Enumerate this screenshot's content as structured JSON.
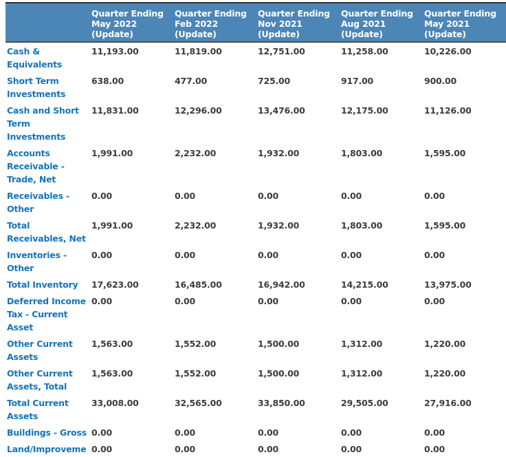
{
  "chart_data": {
    "type": "table",
    "corner_label": "",
    "columns": [
      "Quarter Ending\nMay 2022\n(Update)",
      "Quarter Ending\nFeb 2022\n(Update)",
      "Quarter Ending\nNov 2021\n(Update)",
      "Quarter Ending\nAug 2021\n(Update)",
      "Quarter Ending\nMay 2021\n(Update)"
    ],
    "rows": [
      {
        "label": "Cash &\nEquivalents",
        "values": [
          "11,193.00",
          "11,819.00",
          "12,751.00",
          "11,258.00",
          "10,226.00"
        ]
      },
      {
        "label": "Short Term\nInvestments",
        "values": [
          "638.00",
          "477.00",
          "725.00",
          "917.00",
          "900.00"
        ]
      },
      {
        "label": "Cash and Short\nTerm\nInvestments",
        "values": [
          "11,831.00",
          "12,296.00",
          "13,476.00",
          "12,175.00",
          "11,126.00"
        ]
      },
      {
        "label": "Accounts\nReceivable -\nTrade, Net",
        "values": [
          "1,991.00",
          "2,232.00",
          "1,932.00",
          "1,803.00",
          "1,595.00"
        ]
      },
      {
        "label": "Receivables -\nOther",
        "values": [
          "0.00",
          "0.00",
          "0.00",
          "0.00",
          "0.00"
        ]
      },
      {
        "label": "Total\nReceivables, Net",
        "values": [
          "1,991.00",
          "2,232.00",
          "1,932.00",
          "1,803.00",
          "1,595.00"
        ]
      },
      {
        "label": "Inventories -\nOther",
        "values": [
          "0.00",
          "0.00",
          "0.00",
          "0.00",
          "0.00"
        ]
      },
      {
        "label": "Total Inventory",
        "values": [
          "17,623.00",
          "16,485.00",
          "16,942.00",
          "14,215.00",
          "13,975.00"
        ]
      },
      {
        "label": "Deferred Income\nTax - Current\nAsset",
        "values": [
          "0.00",
          "0.00",
          "0.00",
          "0.00",
          "0.00"
        ]
      },
      {
        "label": "Other Current\nAssets",
        "values": [
          "1,563.00",
          "1,552.00",
          "1,500.00",
          "1,312.00",
          "1,220.00"
        ]
      },
      {
        "label": "Other Current\nAssets, Total",
        "values": [
          "1,563.00",
          "1,552.00",
          "1,500.00",
          "1,312.00",
          "1,220.00"
        ]
      },
      {
        "label": "Total Current\nAssets",
        "values": [
          "33,008.00",
          "32,565.00",
          "33,850.00",
          "29,505.00",
          "27,916.00"
        ]
      },
      {
        "label": "Buildings - Gross",
        "values": [
          "0.00",
          "0.00",
          "0.00",
          "0.00",
          "0.00"
        ]
      },
      {
        "label": "Land/Improveme",
        "values": [
          "0.00",
          "0.00",
          "0.00",
          "0.00",
          "0.00"
        ]
      }
    ]
  },
  "styles": {
    "background": "#FFFFFF",
    "header_bg": "#4C86B6",
    "header_text": "#FFFFFF",
    "row_label_color": "#1673B9",
    "value_color": "#3C3C3C",
    "top_border_color": "#2E2E2E",
    "header_divider_color": "#4D4D4D"
  }
}
